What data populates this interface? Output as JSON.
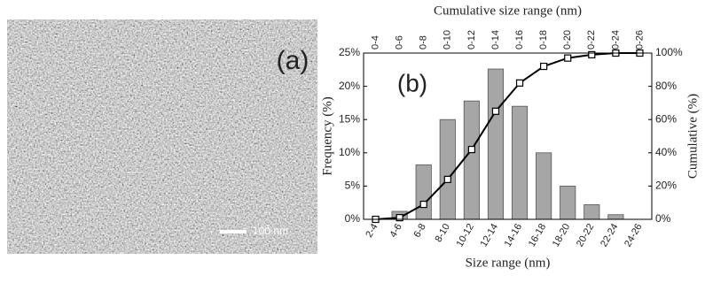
{
  "panel_a": {
    "label": "(a)",
    "scale_bar": "100 nm"
  },
  "chart_data": {
    "type": "bar",
    "panel_label": "(b)",
    "title": "Cumulative size range (nm)",
    "x_label": "Size range (nm)",
    "y_label": "Frequency (%)",
    "y2_label": "Cumulative (%)",
    "categories": [
      "2-4",
      "4-6",
      "6-8",
      "8-10",
      "10-12",
      "12-14",
      "14-16",
      "16-18",
      "18-20",
      "20-22",
      "22-24",
      "24-26"
    ],
    "top_categories": [
      "0-4",
      "0-6",
      "0-8",
      "0-10",
      "0-12",
      "0-14",
      "0-16",
      "0-18",
      "0-20",
      "0-22",
      "0-24",
      "0-26"
    ],
    "series": [
      {
        "type": "bar",
        "color": "#a6a6a6",
        "values": [
          0,
          1.2,
          8.2,
          15,
          17.8,
          22.6,
          17,
          10,
          5,
          2.2,
          0.7,
          0
        ]
      },
      {
        "type": "line",
        "axis": "y2",
        "color": "#000000",
        "values": [
          0,
          1,
          9,
          24,
          42,
          65,
          82,
          92,
          97,
          99,
          100,
          100
        ]
      }
    ],
    "ylim": [
      0,
      25
    ],
    "yticks": [
      {
        "value": 0,
        "label": "0%"
      },
      {
        "value": 5,
        "label": "5%"
      },
      {
        "value": 10,
        "label": "10%"
      },
      {
        "value": 15,
        "label": "15%"
      },
      {
        "value": 20,
        "label": "20%"
      },
      {
        "value": 25,
        "label": "25%"
      }
    ],
    "y2lim": [
      0,
      100
    ],
    "y2ticks": [
      {
        "value": 0,
        "label": "0%"
      },
      {
        "value": 20,
        "label": "20%"
      },
      {
        "value": 40,
        "label": "40%"
      },
      {
        "value": 60,
        "label": "60%"
      },
      {
        "value": 80,
        "label": "80%"
      },
      {
        "value": 100,
        "label": "100%"
      }
    ]
  }
}
